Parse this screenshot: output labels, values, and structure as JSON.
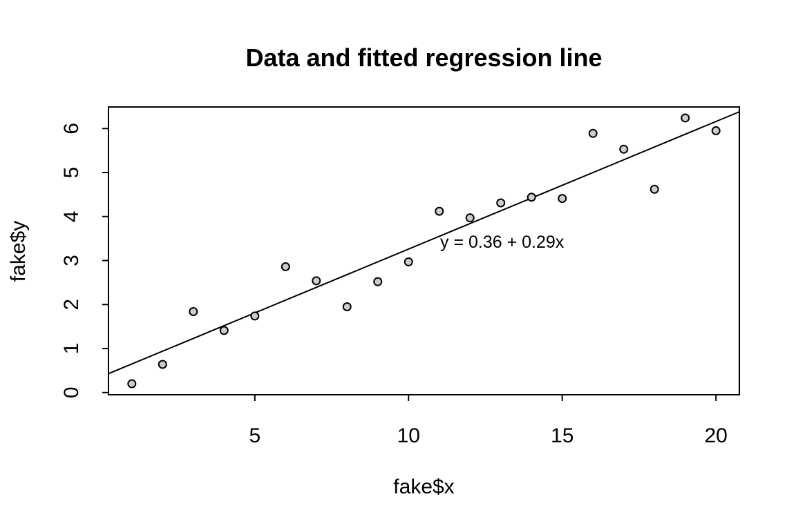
{
  "title": "Data and fitted regression line",
  "annotation": {
    "text": "y = 0.36 + 0.29x"
  },
  "colors": {
    "background": "#ffffff",
    "point_fill": "#cccccc",
    "point_stroke": "#000000",
    "line": "#000000",
    "axis": "#000000",
    "text": "#000000"
  },
  "chart_data": {
    "type": "scatter",
    "title": "Data and fitted regression line",
    "xlabel": "fake$x",
    "ylabel": "fake$y",
    "x": [
      1,
      2,
      3,
      4,
      5,
      6,
      7,
      8,
      9,
      10,
      11,
      12,
      13,
      14,
      15,
      16,
      17,
      18,
      19,
      20
    ],
    "y": [
      0.2,
      0.64,
      1.84,
      1.41,
      1.74,
      2.86,
      2.54,
      1.95,
      2.52,
      2.97,
      4.12,
      3.97,
      4.31,
      4.44,
      4.41,
      5.89,
      5.53,
      4.62,
      6.24,
      5.95
    ],
    "xlim": [
      0.24,
      20.76
    ],
    "ylim": [
      -0.05,
      6.49
    ],
    "x_ticks": [
      5,
      10,
      15,
      20
    ],
    "y_ticks": [
      0,
      1,
      2,
      3,
      4,
      5,
      6
    ],
    "grid": false,
    "legend": "none",
    "fit_line": {
      "intercept": 0.36,
      "slope": 0.29,
      "equation_label": "y = 0.36 + 0.29x"
    }
  }
}
